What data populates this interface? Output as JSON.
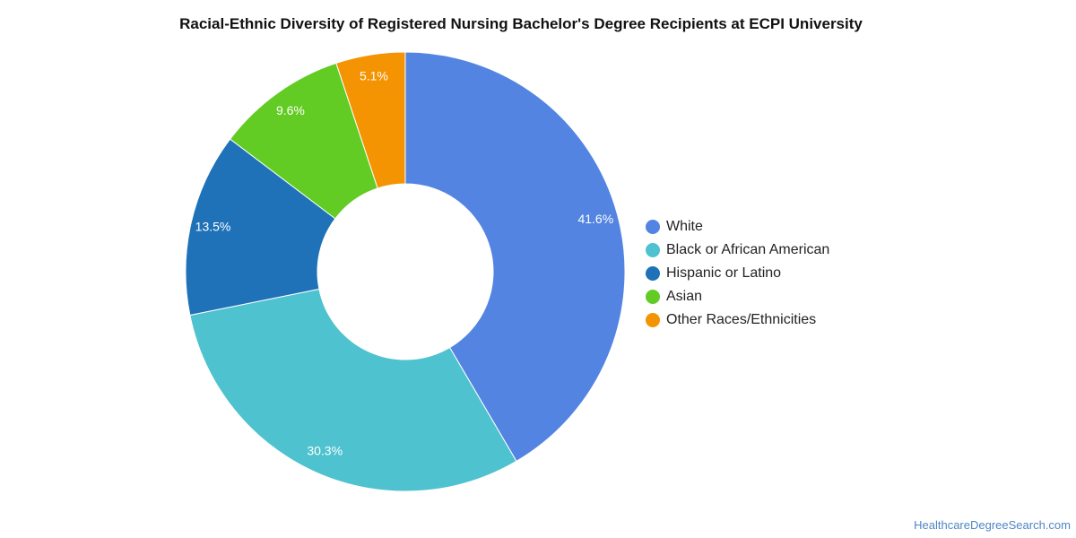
{
  "chart_data": {
    "type": "pie",
    "variant": "donut",
    "title": "Racial-Ethnic Diversity of Registered Nursing Bachelor's Degree Recipients at ECPI University",
    "categories": [
      "White",
      "Black or African American",
      "Hispanic or Latino",
      "Asian",
      "Other Races/Ethnicities"
    ],
    "values": [
      41.6,
      30.3,
      13.5,
      9.6,
      5.1
    ],
    "value_labels": [
      "41.6%",
      "30.3%",
      "13.5%",
      "9.6%",
      "5.1%"
    ],
    "colors": [
      "#5384e2",
      "#4fc2cf",
      "#1f72b8",
      "#62cc24",
      "#f59402"
    ],
    "legend_position": "right"
  },
  "footer": {
    "source": "HealthcareDegreeSearch.com"
  }
}
